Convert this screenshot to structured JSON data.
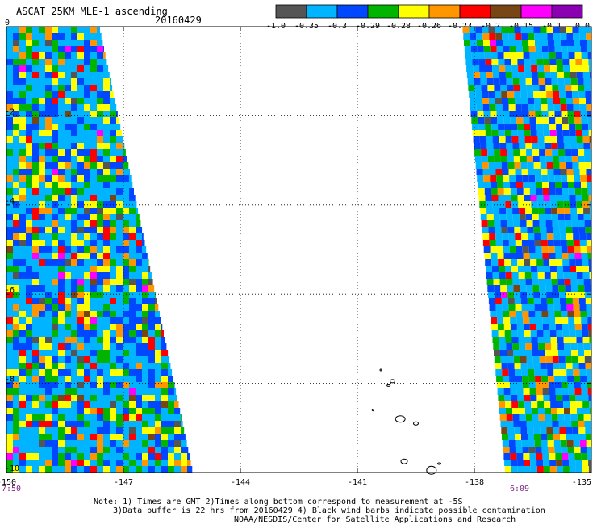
{
  "header": {
    "title": "ASCAT 25KM MLE-1 ascending",
    "date": "20160429"
  },
  "colorbar": {
    "labels": [
      "-1.0",
      "-0.35",
      "-0.3",
      "-0.29",
      "-0.28",
      "-0.26",
      "-0.23",
      "-0.2",
      "-0.15",
      "-0.1",
      "0.0"
    ],
    "colors": [
      "#555555",
      "#00b4ff",
      "#0048ff",
      "#00b400",
      "#ffff00",
      "#ff9600",
      "#ff0000",
      "#784614",
      "#ff00ff",
      "#8c00b4"
    ]
  },
  "map": {
    "lon_labels": [
      "-150",
      "-147",
      "-144",
      "-141",
      "-138",
      "-135"
    ],
    "lat_labels": [
      "0",
      "-2",
      "-4",
      "-6",
      "-8",
      "-10"
    ],
    "lon_range": [
      -150,
      -135
    ],
    "lat_range": [
      -10,
      0
    ],
    "grid_style": "dotted",
    "swaths": [
      {
        "side": "left",
        "edge_lon_top": -147.6,
        "edge_lon_bottom": -145.2
      },
      {
        "side": "right",
        "edge_lon_top": -138.3,
        "edge_lon_bottom": -137.2
      }
    ],
    "islands": "Marquesas Islands outlines"
  },
  "times": {
    "left": "7:50",
    "right": "6:09"
  },
  "notes": {
    "line1": "Note: 1) Times are GMT 2)Times along bottom correspond to measurement at -5S",
    "line2": "3)Data buffer is 22 hrs from 20160429 4) Black wind barbs indicate possible contamination",
    "line3": "NOAA/NESDIS/Center for Satellite Applications and Research"
  }
}
